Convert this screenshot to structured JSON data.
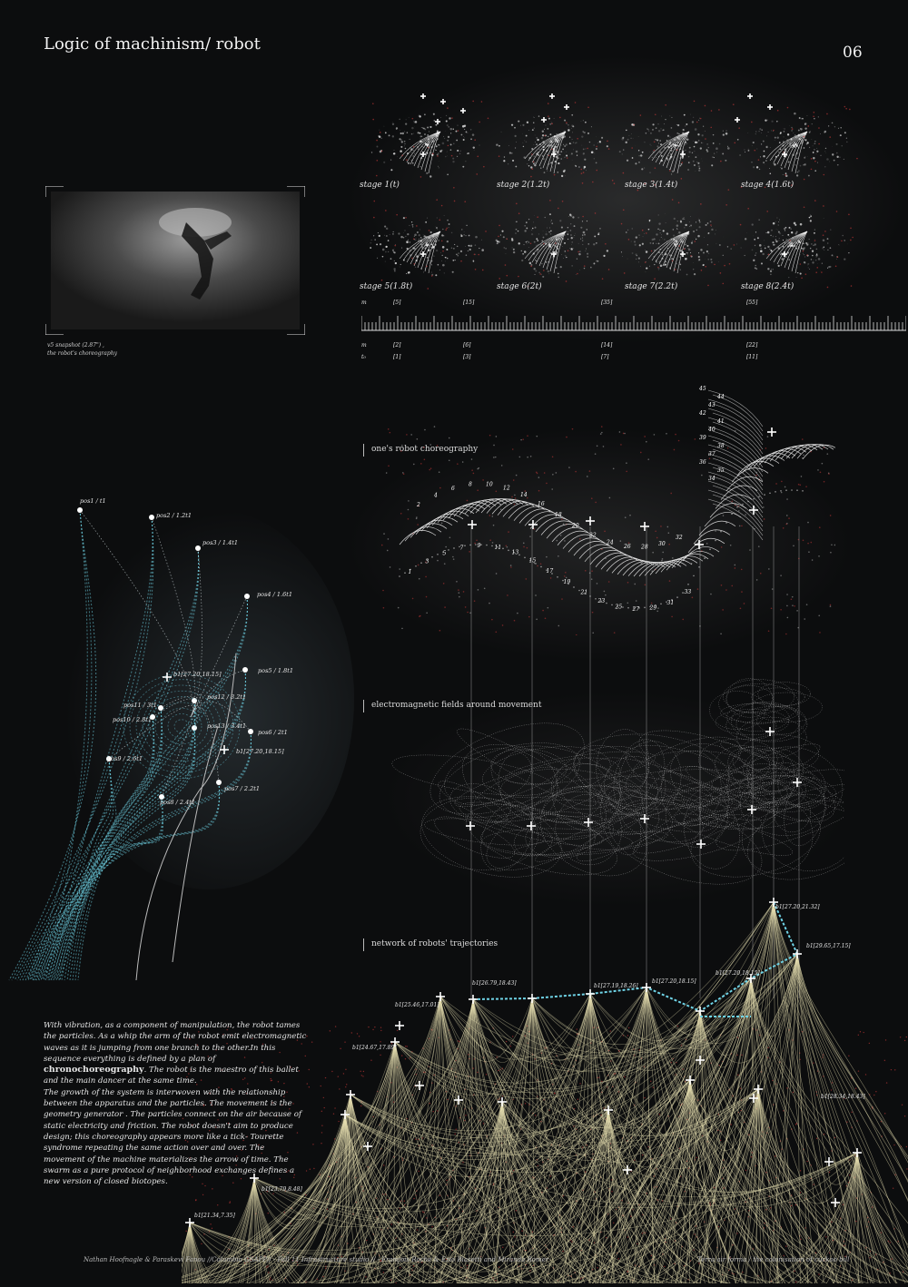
{
  "header": {
    "title": "Logic of machinism/ robot",
    "page_number": "06"
  },
  "snapshot": {
    "caption_line1": "v5 snapshot (2.87\") ,",
    "caption_line2": "the robot's choreography"
  },
  "stages": [
    "stage 1(t)",
    "stage 2(1.2t)",
    "stage 3(1.4t)",
    "stage 4(1.6t)",
    "stage 5(1.8t)",
    "stage 6(2t)",
    "stage 7(2.2t)",
    "stage 8(2.4t)"
  ],
  "timeline": {
    "top_row_label": "m",
    "top_marks": [
      "[5]",
      "[15]",
      "[35]",
      "[55]"
    ],
    "mid_row_label": "m",
    "mid_marks": [
      "[2]",
      "[6]",
      "[14]",
      "[22]"
    ],
    "bottom_row_label": "t₀",
    "bottom_marks": [
      "[1]",
      "[3]",
      "[7]",
      "[11]"
    ]
  },
  "sections": {
    "choreography": "one's robot choreography",
    "fields": "electromagnetic fields around movement",
    "network": "network of robots' trajectories"
  },
  "positions": [
    "pos1 / t1",
    "pos2 / 1.2t1",
    "pos3 / 1.4t1",
    "pos4 / 1.6t1",
    "pos5 / 1.8t1",
    "pos6 / 2t1",
    "pos7 / 2.2t1",
    "pos8 / 2.4t1",
    "pos9 / 2.6t1",
    "pos10 / 2.8t1",
    "pos11 / 3t1",
    "pos12 / 3.2t1",
    "pos13 / 3.4t1"
  ],
  "position_coords": [
    "b1[27.20,18.15]",
    "b1[27.20,18.15]"
  ],
  "network_labels": [
    "b1[27.20,21.32]",
    "b1[29.65,17.15]",
    "b1[27.20,18.15]",
    "b1[27.20,18.15]",
    "b1[27.19,18.26]",
    "b1[26.79,18.43]",
    "b1[25.46,17.01]",
    "b1[24.67,17.89]",
    "b1[21.34,7.35]",
    "b1[23.79,8.48]",
    "b1[28.34,18.43]"
  ],
  "body": {
    "para1_before": "With vibration, as a component of manipulation, the robot tames the particles. As a whip the arm of the robot emit electromagnetic waves as it is jumping from one branch to the other.In this sequence everything is defined by a plan of ",
    "para1_bold": "chronochoreography",
    "para1_after": ". The robot is the maestro of this ballet and the main dancer at the same time.",
    "para2": "The growth of the system is interwoven with the relationship between the apparatus and the particles. The movement is the geometry generator . The particles connect on the air because of static electricity and friction. The robot doesn't aim to produce design; this choreography appears more like a tick- Tourette syndrome repeating the same action over and over. The movement of the machine materializes the arrow of time. The swarm as a pure protocol of neighborhood exchanges defines a new version of closed biotopes."
  },
  "footer": {
    "left": "Nathan Hoofnagle & Paraskevi Fanou //Columbia GSAPP// - Fall 11 Infrastructure studio // - François Roche & Ezio Blasetti and Miranda Romer",
    "right": "Terra air forma / the colonisation of cuckoo bill"
  },
  "colors": {
    "background": "#0c0d0e",
    "cyan_path": "#6fd3e6",
    "cream_lines": "#e9e2b3",
    "red_dots": "#d23a3a"
  }
}
